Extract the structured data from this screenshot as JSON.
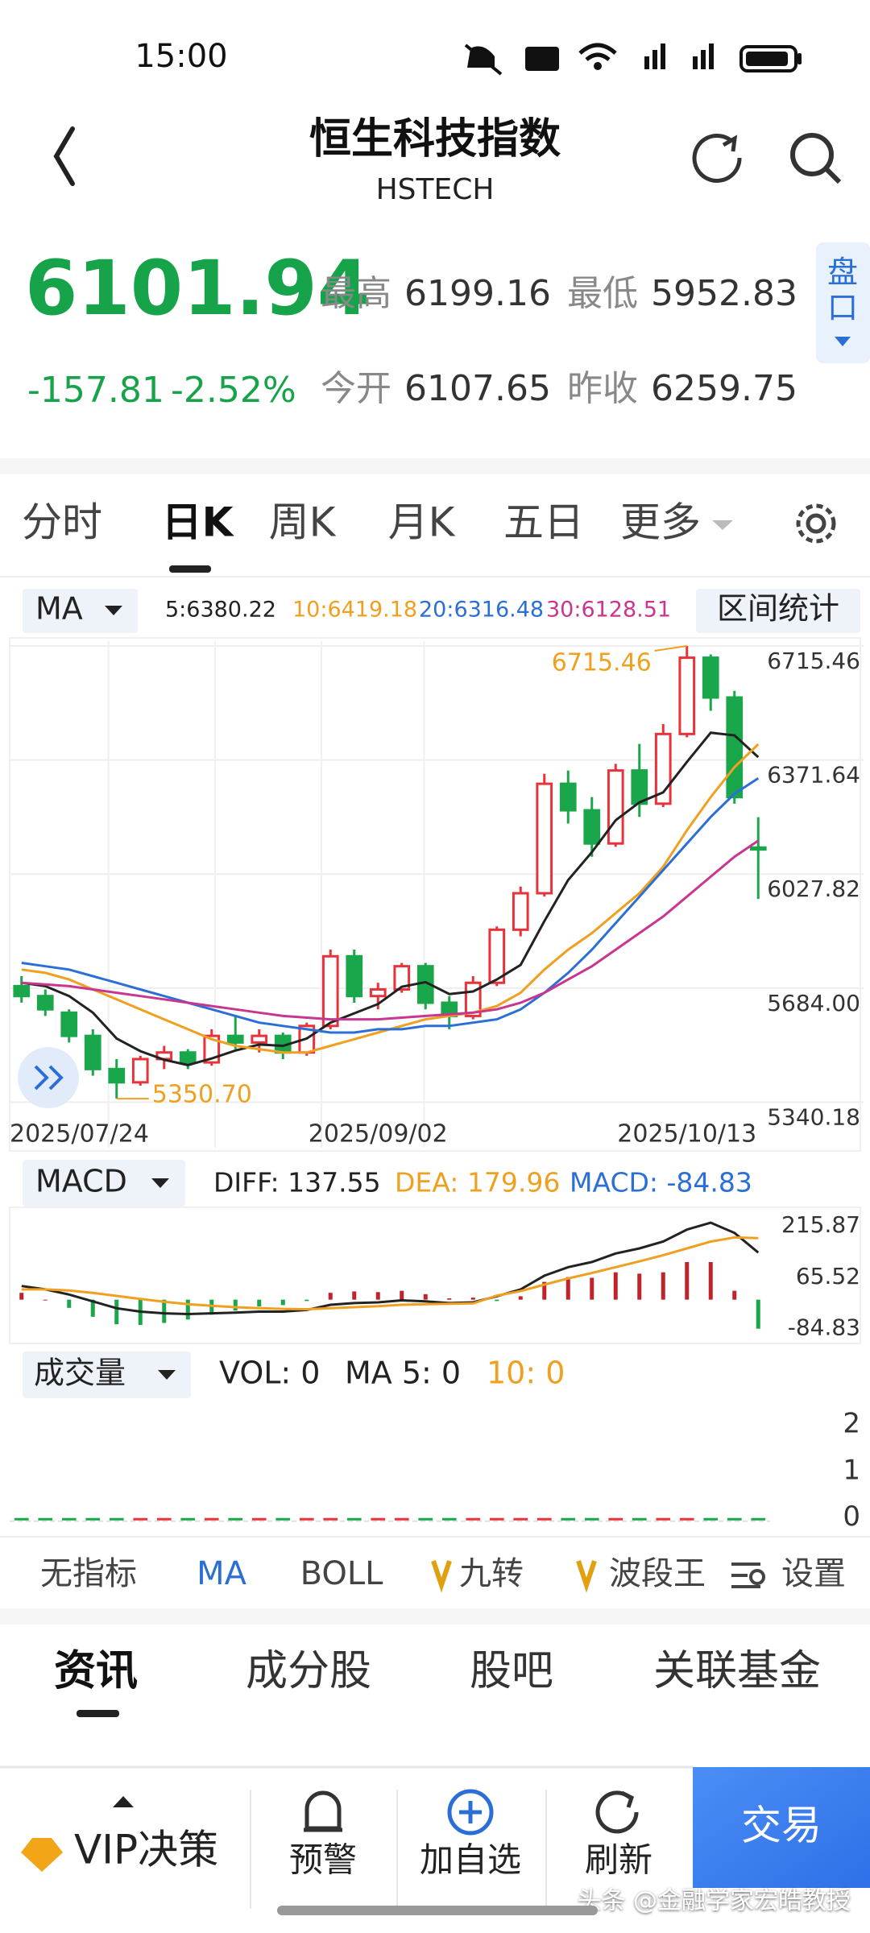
{
  "status_bar": {
    "time": "15:00"
  },
  "header": {
    "title": "恒生科技指数",
    "subtitle": "HSTECH"
  },
  "quote": {
    "price": "6101.94",
    "high_label": "最高",
    "high": "6199.16",
    "low_label": "最低",
    "low": "5952.83",
    "change": "-157.81",
    "change_pct": "-2.52%",
    "open_label": "今开",
    "open": "6107.65",
    "prev_close_label": "昨收",
    "prev_close": "6259.75",
    "depth_button": "盘口"
  },
  "period_tabs": [
    "分时",
    "日K",
    "周K",
    "月K",
    "五日",
    "更多"
  ],
  "ma_bar": {
    "selector": "MA",
    "values": [
      "5:6380.22",
      "10:6419.18",
      "20:6316.48",
      "30:6128.51"
    ],
    "button": "区间统计"
  },
  "macd_bar": {
    "selector": "MACD",
    "values": [
      "DIFF: 137.55",
      "DEA: 179.96",
      "MACD: -84.83"
    ]
  },
  "volume_bar": {
    "selector": "成交量",
    "values": [
      "VOL: 0",
      "MA 5: 0",
      "10: 0"
    ]
  },
  "chart_data": [
    {
      "type": "candlestick",
      "categories": [
        "2025/07/24",
        null,
        null,
        null,
        null,
        null,
        null,
        null,
        null,
        null,
        null,
        null,
        null,
        null,
        null,
        "2025/09/02",
        null,
        null,
        null,
        null,
        null,
        null,
        null,
        null,
        null,
        null,
        null,
        null,
        "2025/10/13",
        null,
        null,
        null
      ],
      "open": [
        5690,
        5660,
        5610,
        5540,
        5440,
        5400,
        5470,
        5490,
        5460,
        5540,
        5520,
        5540,
        5490,
        5570,
        5780,
        5660,
        5680,
        5750,
        5640,
        5600,
        5700,
        5860,
        5970,
        6300,
        6220,
        6120,
        6340,
        6240,
        6450,
        6680,
        6560,
        6107.65
      ],
      "high": [
        5720,
        5680,
        5620,
        5560,
        5470,
        5480,
        5510,
        5500,
        5560,
        5600,
        5560,
        5550,
        5580,
        5800,
        5800,
        5700,
        5760,
        5760,
        5660,
        5720,
        5870,
        5990,
        6330,
        6340,
        6260,
        6360,
        6420,
        6480,
        6715.46,
        6690,
        6580,
        6199.16
      ],
      "low": [
        5640,
        5600,
        5520,
        5420,
        5350.7,
        5390,
        5440,
        5440,
        5450,
        5500,
        5490,
        5470,
        5480,
        5560,
        5640,
        5620,
        5670,
        5620,
        5560,
        5590,
        5690,
        5840,
        5960,
        6180,
        6080,
        6110,
        6200,
        6230,
        6440,
        6520,
        6240,
        5952.83
      ],
      "close": [
        5660,
        5620,
        5540,
        5440,
        5400,
        5470,
        5490,
        5460,
        5540,
        5520,
        5540,
        5490,
        5570,
        5780,
        5660,
        5680,
        5750,
        5640,
        5600,
        5700,
        5860,
        5970,
        6300,
        6220,
        6120,
        6340,
        6240,
        6450,
        6680,
        6560,
        6259.75,
        6101.94
      ],
      "up_color": "#e8333a",
      "down_color": "#1aa64a",
      "lines": [
        {
          "color": "#222222",
          "values": [
            5700,
            5690,
            5660,
            5610,
            5532,
            5494,
            5468,
            5452,
            5472,
            5496,
            5514,
            5510,
            5532,
            5580,
            5608,
            5636,
            5688,
            5702,
            5666,
            5674,
            5710,
            5754,
            5886,
            6010,
            6094,
            6190,
            6244,
            6274,
            6366,
            6454,
            6446,
            6380.22
          ]
        },
        {
          "color": "#f0a020",
          "values": [
            5740,
            5730,
            5710,
            5680,
            5650,
            5620,
            5590,
            5560,
            5530,
            5510,
            5500,
            5490,
            5490,
            5510,
            5530,
            5550,
            5570,
            5590,
            5600,
            5610,
            5630,
            5670,
            5740,
            5800,
            5850,
            5910,
            5970,
            6050,
            6160,
            6260,
            6350,
            6419.18
          ]
        },
        {
          "color": "#2b6fd6",
          "values": [
            5760,
            5750,
            5740,
            5720,
            5700,
            5680,
            5660,
            5640,
            5620,
            5600,
            5580,
            5570,
            5560,
            5550,
            5550,
            5560,
            5560,
            5570,
            5570,
            5580,
            5590,
            5620,
            5670,
            5730,
            5800,
            5880,
            5960,
            6040,
            6120,
            6200,
            6270,
            6316.48
          ]
        },
        {
          "color": "#c8368f",
          "values": [
            5700,
            5695,
            5690,
            5680,
            5670,
            5660,
            5650,
            5640,
            5630,
            5620,
            5610,
            5600,
            5595,
            5590,
            5590,
            5590,
            5595,
            5600,
            5605,
            5610,
            5620,
            5640,
            5670,
            5710,
            5750,
            5800,
            5850,
            5900,
            5960,
            6020,
            6080,
            6128.51
          ]
        }
      ],
      "annotations": [
        {
          "value": 6715.46,
          "label": "6715.46",
          "color": "#f0a020"
        },
        {
          "value": 5350.7,
          "label": "5350.70",
          "color": "#f0a020"
        }
      ],
      "ylim": [
        5300,
        6730
      ],
      "yticks": [
        6715.46,
        6371.64,
        6027.82,
        {
          "value": 5684.0,
          "label": "5684.00"
        },
        5340.18
      ],
      "grid": true
    },
    {
      "type": "macd",
      "lines": [
        {
          "color": "#222222",
          "values": [
            40,
            30,
            15,
            -5,
            -25,
            -35,
            -40,
            -42,
            -40,
            -38,
            -35,
            -35,
            -30,
            -15,
            -10,
            -8,
            -2,
            -5,
            -10,
            -8,
            10,
            30,
            70,
            95,
            110,
            135,
            150,
            170,
            205,
            225,
            195,
            137.55
          ]
        },
        {
          "color": "#f0a020",
          "values": [
            30,
            30,
            27,
            20,
            11,
            2,
            -6,
            -13,
            -18,
            -22,
            -25,
            -27,
            -28,
            -25,
            -22,
            -19,
            -15,
            -13,
            -12,
            -11,
            12,
            25,
            44,
            62,
            78,
            95,
            112,
            130,
            150,
            170,
            182,
            179.96
          ]
        }
      ],
      "values": [
        20,
        0,
        -24,
        -50,
        -72,
        -74,
        -68,
        -58,
        -44,
        -32,
        -20,
        -16,
        -4,
        20,
        24,
        22,
        26,
        16,
        4,
        6,
        -4,
        10,
        52,
        66,
        64,
        80,
        76,
        80,
        110,
        110,
        26,
        -84.83
      ],
      "up_color": "#c0232b",
      "down_color": "#1aa64a",
      "ylim": [
        -128,
        270
      ],
      "yticks": [
        215.87,
        65.52,
        -84.83
      ]
    },
    {
      "type": "volume",
      "values": [
        0,
        0,
        0,
        0,
        0,
        0,
        0,
        0,
        0,
        0,
        0,
        0,
        0,
        0,
        0,
        0,
        0,
        0,
        0,
        0,
        0,
        0,
        0,
        0,
        0,
        0,
        0,
        0,
        0,
        0,
        0,
        0
      ],
      "ylim": [
        -0.35,
        2.55
      ],
      "yticks": [
        2,
        1,
        0
      ]
    }
  ],
  "indicator_tabs": [
    "无指标",
    "MA",
    "BOLL",
    "九转",
    "波段王",
    "设置"
  ],
  "info_tabs": [
    "资讯",
    "成分股",
    "股吧",
    "关联基金"
  ],
  "bottom_bar": {
    "vip": "VIP决策",
    "alert": "预警",
    "watch": "加自选",
    "refresh": "刷新",
    "trade": "交易"
  },
  "watermark": "头条 @金融学家宏皓教授"
}
